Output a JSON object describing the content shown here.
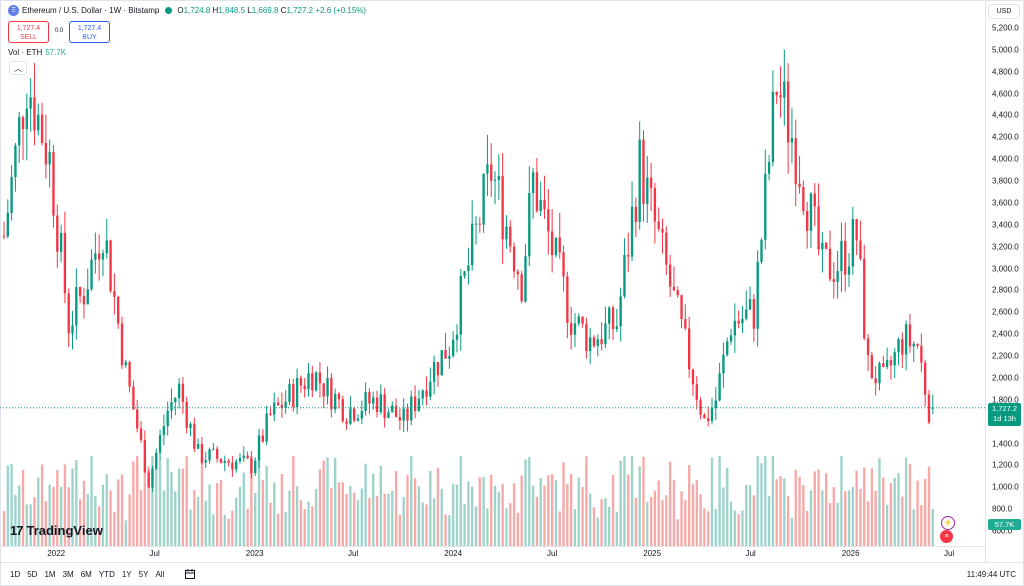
{
  "legend": {
    "title": "Ethereum / U.S. Dollar · 1W · Bitstamp",
    "open_label": "O",
    "open": "1,724.8",
    "high_label": "H",
    "high": "1,848.5",
    "low_label": "L",
    "low": "1,669.8",
    "close_label": "C",
    "close": "1,727.2",
    "change": "+2.6 (+0.15%)"
  },
  "trade": {
    "sell_price": "1,727.4",
    "sell_label": "SELL",
    "spread": "0.0",
    "buy_price": "1,727.4",
    "buy_label": "BUY"
  },
  "volume_legend": {
    "label": "Vol · ETH",
    "value": "57.7K"
  },
  "currency": "USD",
  "price_axis": [
    "5,200.0",
    "5,000.0",
    "4,800.0",
    "4,600.0",
    "4,400.0",
    "4,200.0",
    "4,000.0",
    "3,800.0",
    "3,600.0",
    "3,400.0",
    "3,200.0",
    "3,000.0",
    "2,800.0",
    "2,600.0",
    "2,400.0",
    "2,200.0",
    "2,000.0",
    "1,800.0",
    "1,600.0",
    "1,400.0",
    "1,200.0",
    "1,000.0",
    "800.0",
    "600.0"
  ],
  "time_axis": [
    "2022",
    "Jul",
    "2023",
    "Jul",
    "2024",
    "Jul",
    "2025",
    "Jul",
    "2026",
    "Jul"
  ],
  "last_price": {
    "value": "1,727.2",
    "countdown": "1d 13h"
  },
  "last_volume": "57.7K",
  "branding": "TradingView",
  "range_buttons": [
    "1D",
    "5D",
    "1M",
    "3M",
    "6M",
    "YTD",
    "1Y",
    "5Y",
    "All"
  ],
  "clock": "11:49:44 UTC",
  "colors": {
    "up": "#089981",
    "down": "#f23645",
    "vol_up": "#9ed3cb",
    "vol_down": "#f7a9a7",
    "price_line": "#089981"
  },
  "chart_data": {
    "type": "candlestick",
    "interval": "1W",
    "ylim": [
      600,
      5200
    ],
    "x_range": [
      "2021-09-27",
      "2026-06-29"
    ],
    "grid": false,
    "anchors": [
      [
        "2021-09-27",
        3300
      ],
      [
        "2021-11-08",
        4750
      ],
      [
        "2021-12-20",
        4000
      ],
      [
        "2022-01-24",
        2500
      ],
      [
        "2022-02-21",
        2800
      ],
      [
        "2022-03-28",
        3400
      ],
      [
        "2022-05-09",
        2050
      ],
      [
        "2022-06-20",
        1050
      ],
      [
        "2022-07-25",
        1700
      ],
      [
        "2022-08-15",
        1900
      ],
      [
        "2022-09-19",
        1300
      ],
      [
        "2022-11-07",
        1250
      ],
      [
        "2022-12-26",
        1200
      ],
      [
        "2023-01-30",
        1650
      ],
      [
        "2023-04-17",
        2050
      ],
      [
        "2023-06-19",
        1700
      ],
      [
        "2023-08-14",
        1800
      ],
      [
        "2023-10-02",
        1600
      ],
      [
        "2023-11-20",
        2050
      ],
      [
        "2023-12-25",
        2300
      ],
      [
        "2024-03-11",
        3900
      ],
      [
        "2024-05-06",
        2900
      ],
      [
        "2024-05-27",
        3800
      ],
      [
        "2024-08-05",
        2550
      ],
      [
        "2024-09-09",
        2350
      ],
      [
        "2024-10-28",
        2500
      ],
      [
        "2024-12-09",
        3950
      ],
      [
        "2025-02-10",
        2700
      ],
      [
        "2025-04-07",
        1600
      ],
      [
        "2025-04-28",
        1800
      ],
      [
        "2025-05-26",
        2500
      ],
      [
        "2025-07-07",
        2600
      ],
      [
        "2025-08-18",
        4700
      ],
      [
        "2025-09-22",
        4100
      ],
      [
        "2025-11-10",
        3000
      ],
      [
        "2025-12-08",
        3050
      ],
      [
        "2026-01-12",
        3300
      ],
      [
        "2026-02-02",
        2100
      ],
      [
        "2026-03-02",
        1950
      ],
      [
        "2026-04-06",
        2350
      ],
      [
        "2026-05-04",
        2300
      ],
      [
        "2026-05-25",
        1724.8
      ],
      [
        "2026-06-01",
        1727.2
      ]
    ],
    "last_candle": {
      "open": 1724.8,
      "high": 1848.5,
      "low": 1669.8,
      "close": 1727.2,
      "volume": "57.7K"
    }
  }
}
